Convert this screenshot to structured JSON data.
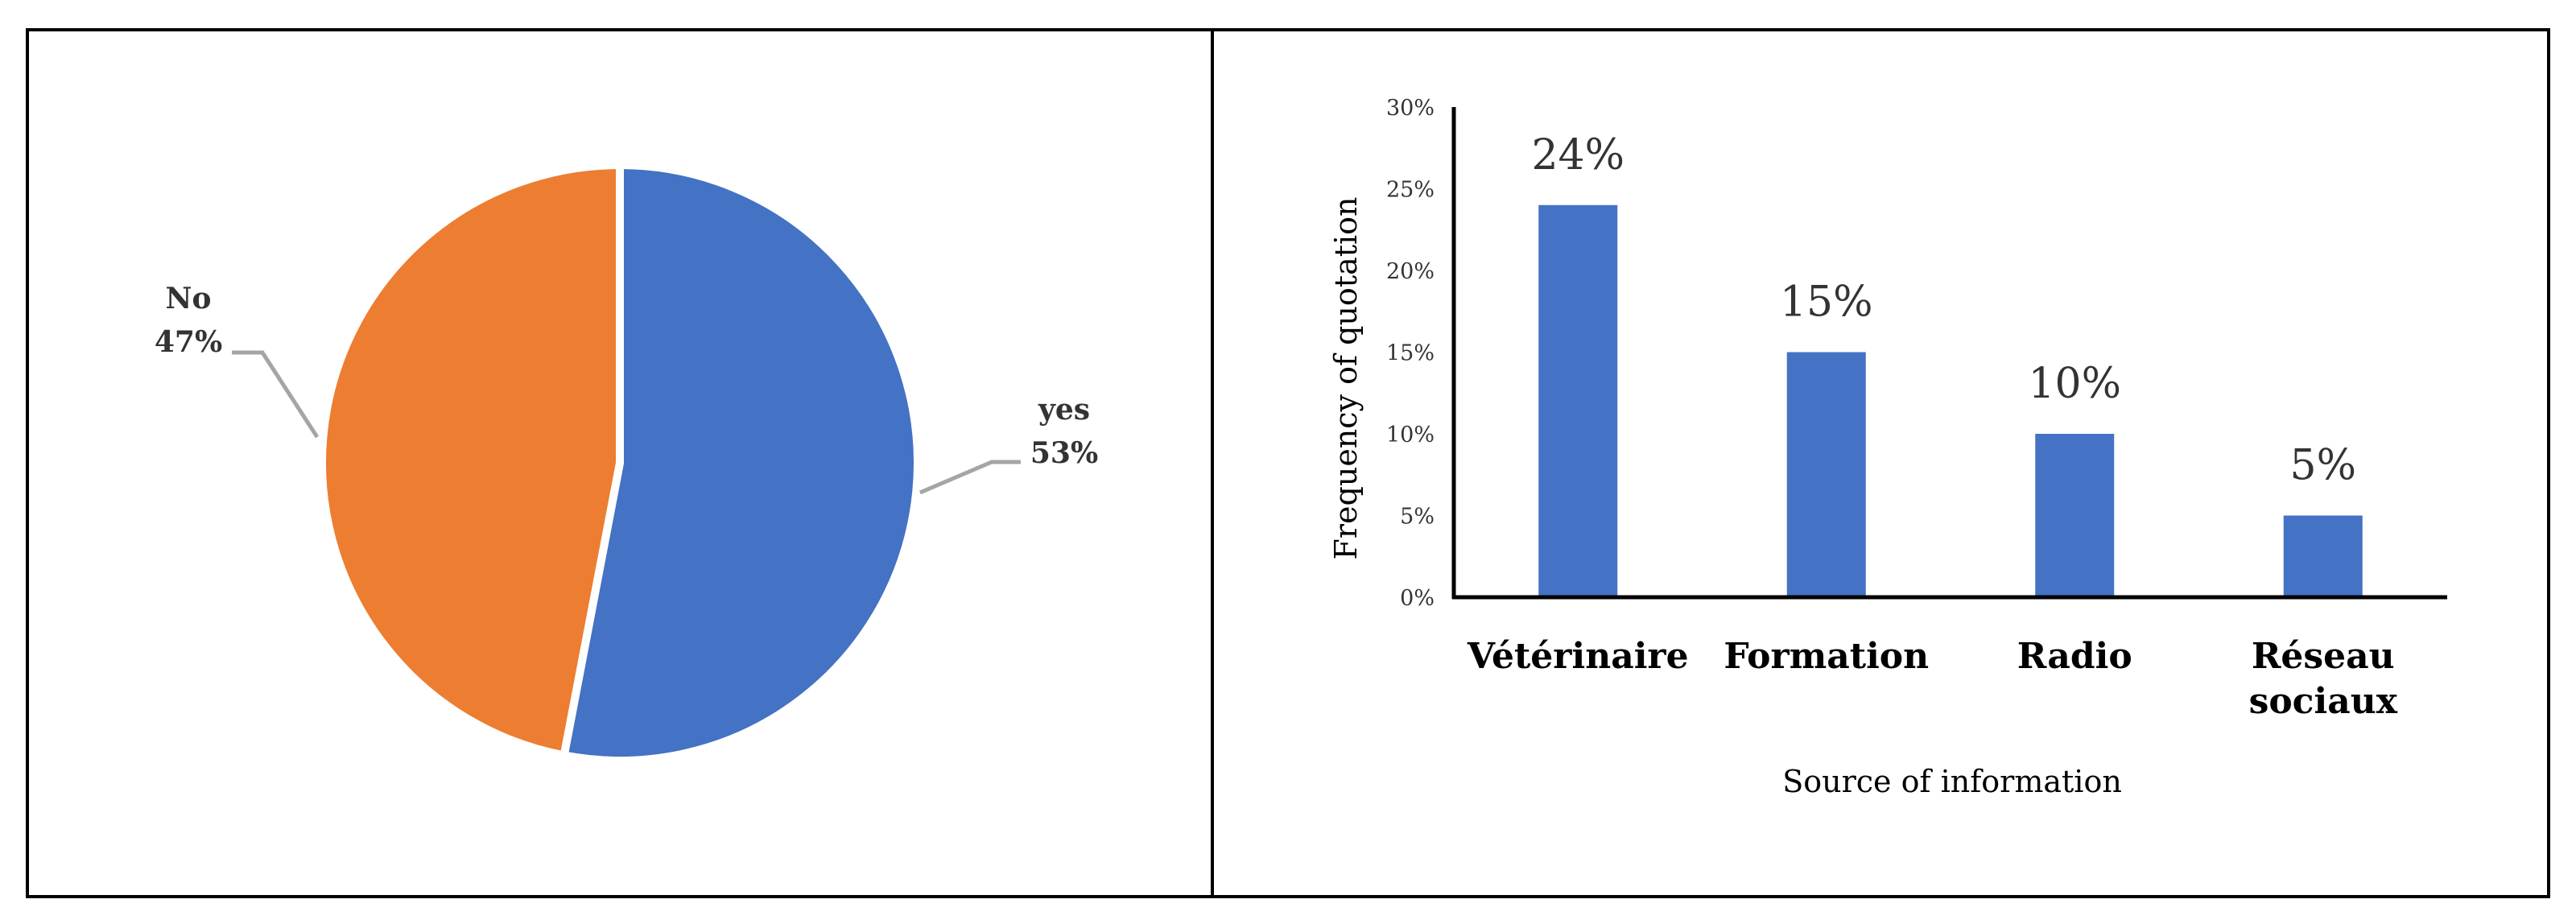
{
  "colors": {
    "yes": "#4472C4",
    "no": "#ED7D31",
    "bars": "#4472C4",
    "axis": "#000000",
    "leader": "#A5A5A5",
    "text": "#333333"
  },
  "chart_data": [
    {
      "type": "pie",
      "slices": [
        {
          "label": "yes",
          "value": 53,
          "value_label": "53%",
          "color": "#4472C4"
        },
        {
          "label": "No",
          "value": 47,
          "value_label": "47%",
          "color": "#ED7D31"
        }
      ]
    },
    {
      "type": "bar",
      "categories": [
        "Vétérinaire",
        "Formation",
        "Radio",
        "Réseau sociaux"
      ],
      "values": [
        24,
        15,
        10,
        5
      ],
      "value_labels": [
        "24%",
        "15%",
        "10%",
        "5%"
      ],
      "xlabel": "Source of information",
      "ylabel": "Frequency of quotation",
      "ylim": [
        0,
        30
      ],
      "yticks": [
        "0%",
        "5%",
        "10%",
        "15%",
        "20%",
        "25%",
        "30%"
      ],
      "grid": false
    }
  ]
}
